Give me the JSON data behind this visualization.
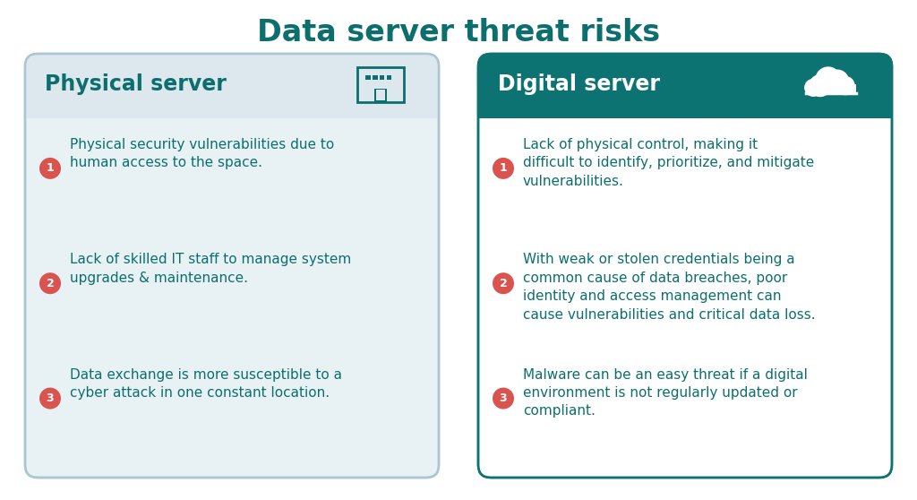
{
  "title": "Data server threat risks",
  "title_color": "#0d6e6e",
  "title_fontsize": 24,
  "bg_color": "#ffffff",
  "left_panel": {
    "header": "Physical server",
    "header_color": "#0d6e6e",
    "header_bg": "#dce8ed",
    "body_bg": "#e8f2f5",
    "border_color": "#aac8d4",
    "items": [
      "Physical security vulnerabilities due to\nhuman access to the space.",
      "Lack of skilled IT staff to manage system\nupgrades & maintenance.",
      "Data exchange is more susceptible to a\ncyber attack in one constant location."
    ]
  },
  "right_panel": {
    "header": "Digital server",
    "header_color": "#ffffff",
    "header_bg": "#0d7272",
    "body_bg": "#ffffff",
    "border_color": "#0d7272",
    "items": [
      "Lack of physical control, making it\ndifficult to identify, prioritize, and mitigate\nvulnerabilities.",
      "With weak or stolen credentials being a\ncommon cause of data breaches, poor\nidentity and access management can\ncause vulnerabilities and critical data loss.",
      "Malware can be an easy threat if a digital\nenvironment is not regularly updated or\ncompliant."
    ]
  },
  "bullet_color": "#d9534f",
  "text_color": "#0d6e6e",
  "item_fontsize": 11.0
}
